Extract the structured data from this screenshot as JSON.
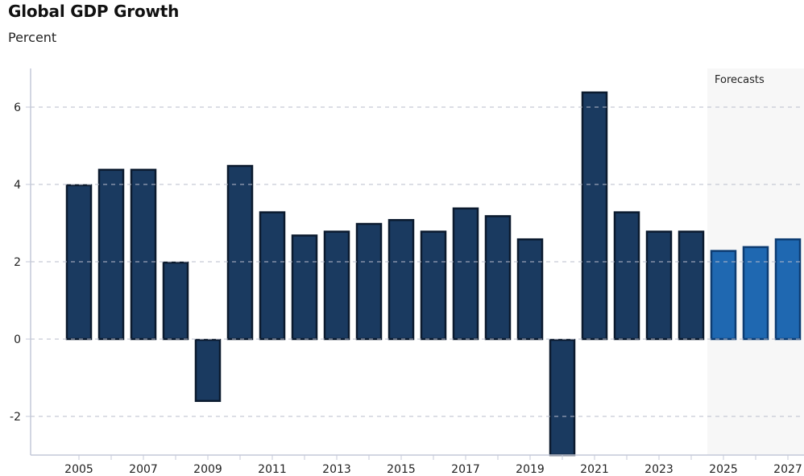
{
  "chart_data": {
    "type": "bar",
    "title": "Global GDP Growth",
    "subtitle": "Percent",
    "xlabel": "",
    "ylabel": "Percent",
    "categories": [
      "2005",
      "2006",
      "2007",
      "2008",
      "2009",
      "2010",
      "2011",
      "2012",
      "2013",
      "2014",
      "2015",
      "2016",
      "2017",
      "2018",
      "2019",
      "2020",
      "2021",
      "2022",
      "2023",
      "2024",
      "2025",
      "2026",
      "2027"
    ],
    "values": [
      4.0,
      4.4,
      4.4,
      2.0,
      -1.6,
      4.5,
      3.3,
      2.7,
      2.8,
      3.0,
      3.1,
      2.8,
      3.4,
      3.2,
      2.6,
      -3.1,
      6.4,
      3.3,
      2.8,
      2.8,
      2.3,
      2.4,
      2.6
    ],
    "forecast_flags": [
      false,
      false,
      false,
      false,
      false,
      false,
      false,
      false,
      false,
      false,
      false,
      false,
      false,
      false,
      false,
      false,
      false,
      false,
      false,
      false,
      true,
      true,
      true
    ],
    "x_tick_labels": [
      "2005",
      "2007",
      "2009",
      "2011",
      "2013",
      "2015",
      "2017",
      "2019",
      "2021",
      "2023",
      "2025",
      "2027"
    ],
    "y_ticks": [
      -2,
      0,
      2,
      4,
      6
    ],
    "ylim": [
      -3.0,
      7.0
    ],
    "grid": true,
    "annotation": "Forecasts",
    "forecast_start": "2025",
    "colors": {
      "actual_fill": "#1a3a60",
      "actual_border": "#0b1a2e",
      "forecast_fill": "#1f68b1",
      "forecast_border": "#0d3c72",
      "forecast_shade": "#f7f7f7",
      "grid": "#b9bccb",
      "axis": "#c4c9d8"
    }
  }
}
